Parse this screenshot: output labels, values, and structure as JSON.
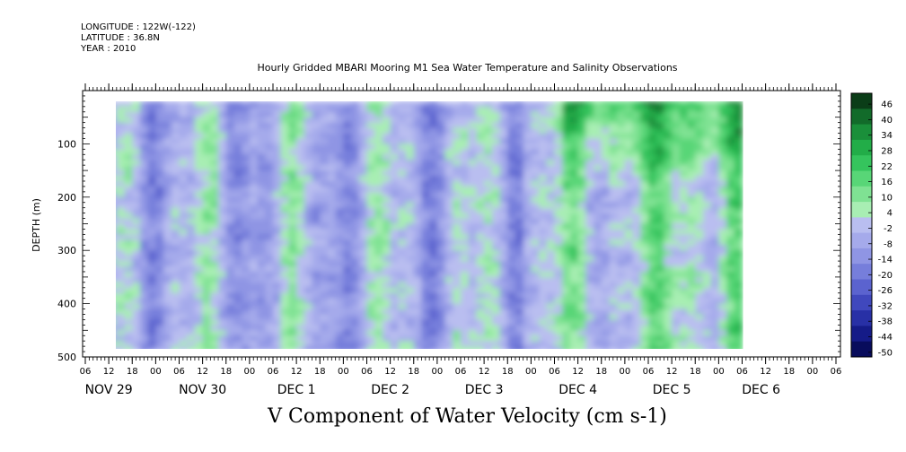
{
  "header": {
    "longitude": "LONGITUDE : 122W(-122)",
    "latitude": "LATITUDE : 36.8N",
    "year": "YEAR : 2010",
    "subtitle": "Hourly Gridded MBARI Mooring M1 Sea Water Temperature and Salinity Observations"
  },
  "chart_data": {
    "type": "heatmap",
    "title": "V Component of Water Velocity (cm s-1)",
    "subtitle": "Hourly Gridded MBARI Mooring M1 Sea Water Temperature and Salinity Observations",
    "xlabel": "",
    "ylabel": "DEPTH (m)",
    "y_range": [
      500,
      0
    ],
    "y_inverted": true,
    "y_ticks": [
      "100",
      "200",
      "300",
      "400",
      "500"
    ],
    "x_hour_ticks": [
      "06",
      "12",
      "18",
      "00",
      "06",
      "12",
      "18",
      "00",
      "06",
      "12",
      "18",
      "00",
      "06",
      "12",
      "18",
      "00",
      "06",
      "12",
      "18",
      "00",
      "06",
      "12",
      "18",
      "00",
      "06",
      "12",
      "18",
      "00",
      "06",
      "12",
      "18",
      "00",
      "06"
    ],
    "x_day_labels": [
      "NOV 29",
      "NOV 30",
      "DEC  1",
      "DEC  2",
      "DEC  3",
      "DEC  4",
      "DEC  5",
      "DEC  6"
    ],
    "data_time_range": [
      "NOV 29 12:00",
      "DEC 6 06:00"
    ],
    "data_depth_range_m": [
      20,
      490
    ],
    "colorbar_levels": [
      "46",
      "40",
      "34",
      "28",
      "22",
      "16",
      "10",
      "4",
      "-2",
      "-8",
      "-14",
      "-20",
      "-26",
      "-32",
      "-38",
      "-44",
      "-50"
    ],
    "colorbar_colors": [
      "#0b3d18",
      "#126b2a",
      "#1a8f3a",
      "#22ad48",
      "#35c45d",
      "#58d677",
      "#7fe293",
      "#a8eeb3",
      "#b9bef0",
      "#a5aaeb",
      "#8f95e4",
      "#767edb",
      "#5b63cf",
      "#4048bd",
      "#2830a6",
      "#151b88",
      "#080c5c"
    ],
    "grid": false,
    "pattern_summary": "Alternating vertical bands of weak southward (blue, about -8 to -14) and northward (green, about +4 to +22) flow; strongest northward flow near surface on DEC 4-5."
  }
}
